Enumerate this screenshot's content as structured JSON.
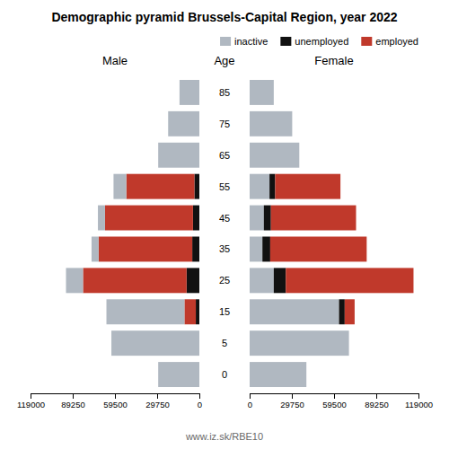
{
  "chart_data": [
    {
      "type": "bar",
      "orientation": "horizontal",
      "stacked": true,
      "title": "Demographic pyramid Brussels-Capital Region, year 2022",
      "xlabel": "Male",
      "ylabel": "Age",
      "annotation": "www.iz.sk/RBE10",
      "categories": [
        "0",
        "5",
        "15",
        "25",
        "35",
        "45",
        "55",
        "65",
        "75",
        "85"
      ],
      "series": [
        {
          "name": "unemployed",
          "color": "#111111",
          "values": [
            0,
            0,
            2500,
            9000,
            5000,
            4500,
            3500,
            0,
            0,
            0
          ]
        },
        {
          "name": "employed",
          "color": "#c0392b",
          "values": [
            0,
            0,
            8000,
            73000,
            66000,
            62000,
            48000,
            0,
            0,
            0
          ]
        },
        {
          "name": "inactive",
          "color": "#b0b8c1",
          "values": [
            29000,
            62000,
            55000,
            12000,
            5000,
            5000,
            9000,
            29000,
            22000,
            14000
          ]
        }
      ],
      "xlim": [
        119000,
        0
      ],
      "xticks": [
        119000,
        89250,
        59500,
        29750,
        0
      ]
    },
    {
      "type": "bar",
      "orientation": "horizontal",
      "stacked": true,
      "xlabel": "Female",
      "categories": [
        "0",
        "5",
        "15",
        "25",
        "35",
        "45",
        "55",
        "65",
        "75",
        "85"
      ],
      "series": [
        {
          "name": "inactive",
          "color": "#b0b8c1",
          "values": [
            40000,
            70000,
            63000,
            17000,
            9000,
            10000,
            14000,
            35000,
            30000,
            17000
          ]
        },
        {
          "name": "unemployed",
          "color": "#111111",
          "values": [
            0,
            0,
            4000,
            8500,
            5500,
            5000,
            4000,
            0,
            0,
            0
          ]
        },
        {
          "name": "employed",
          "color": "#c0392b",
          "values": [
            0,
            0,
            7000,
            90000,
            68000,
            60000,
            46000,
            0,
            0,
            0
          ]
        }
      ],
      "xlim": [
        0,
        119000
      ],
      "xticks": [
        0,
        29750,
        59500,
        89250,
        119000
      ],
      "legend": "upper right"
    }
  ]
}
